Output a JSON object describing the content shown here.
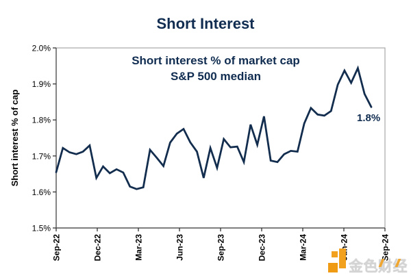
{
  "title": "Short Interest",
  "chart": {
    "inner_title_line1": "Short interest % of market cap",
    "inner_title_line2": "S&P 500 median",
    "y_axis_title": "Short interest % of cap",
    "annotation_label": "1.8%"
  },
  "watermark": {
    "text": "金色财经"
  },
  "colors": {
    "navy_text": "#102c50",
    "line": "#132d4e",
    "border_gray": "#a6a6a6",
    "axis_dark": "#595959",
    "tick": "#333333",
    "watermark_orange": "#f2a11f",
    "watermark_gray": "#d4d4d4"
  },
  "chart_data": {
    "type": "line",
    "title": "Short Interest",
    "subtitle": "Short interest % of market cap S&P 500 median",
    "ylabel": "Short interest % of cap",
    "unit": "%",
    "ylim": [
      1.5,
      2.0
    ],
    "y_ticks": [
      2.0,
      1.9,
      1.8,
      1.7,
      1.6,
      1.5
    ],
    "y_tick_labels": [
      "2.0%",
      "1.9%",
      "1.8%",
      "1.7%",
      "1.6%",
      "1.5%"
    ],
    "x_tick_labels": [
      "Sep-22",
      "Dec-22",
      "Mar-23",
      "Jun-23",
      "Sep-23",
      "Dec-23",
      "Mar-24",
      "Jun-24",
      "Sep-24"
    ],
    "series_start": "Sep-22",
    "series_end": "Aug-24",
    "frequency": "semi-monthly",
    "values": [
      1.655,
      1.722,
      1.71,
      1.705,
      1.712,
      1.729,
      1.639,
      1.671,
      1.652,
      1.663,
      1.654,
      1.615,
      1.608,
      1.613,
      1.717,
      1.695,
      1.672,
      1.737,
      1.762,
      1.775,
      1.738,
      1.712,
      1.639,
      1.722,
      1.667,
      1.747,
      1.724,
      1.726,
      1.683,
      1.787,
      1.731,
      1.81,
      1.687,
      1.683,
      1.705,
      1.714,
      1.712,
      1.79,
      1.833,
      1.815,
      1.812,
      1.825,
      1.898,
      1.937,
      1.903,
      1.944,
      1.872,
      1.836
    ],
    "last_value_label": "1.8%",
    "grid": false,
    "legend": false
  }
}
